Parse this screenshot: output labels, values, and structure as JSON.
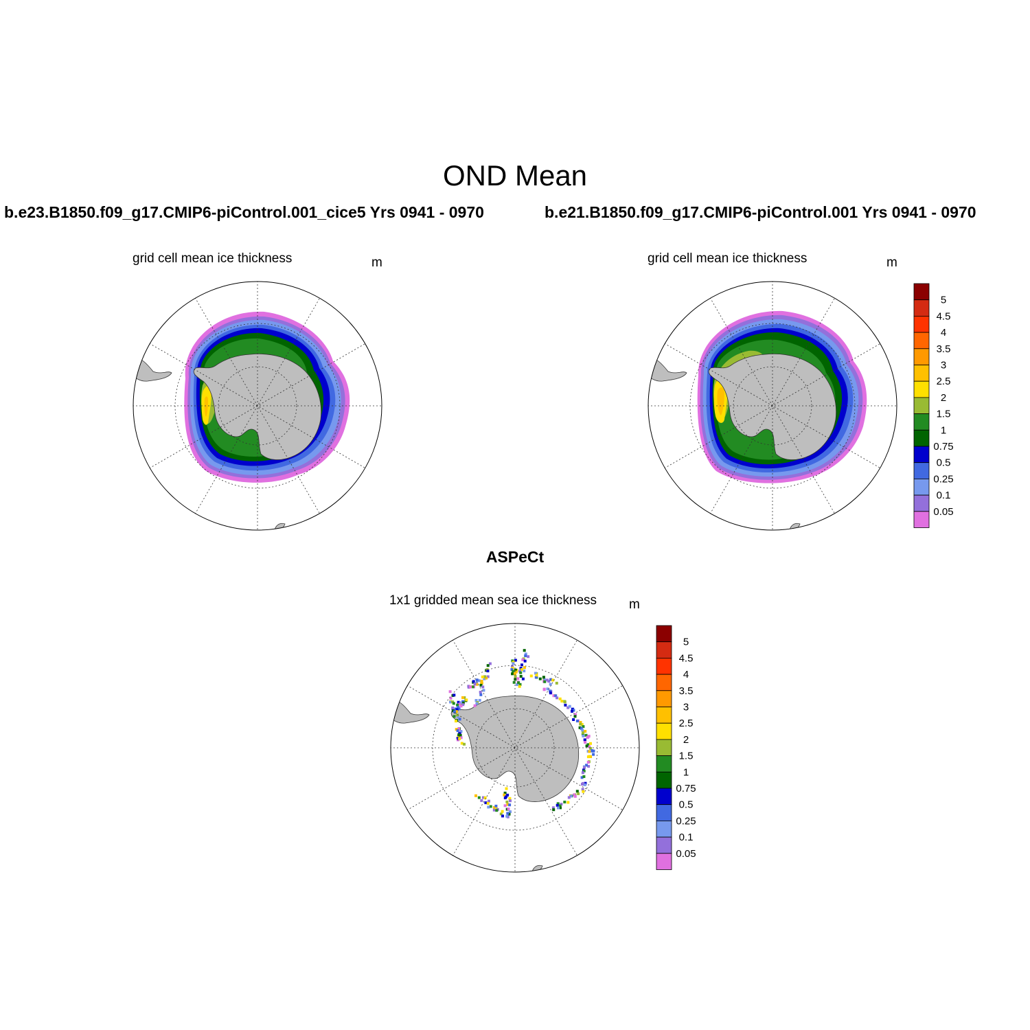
{
  "figure": {
    "title": "OND Mean",
    "obs_title": "ASPeCt"
  },
  "panels": {
    "left": {
      "case": "b.e23.B1850.f09_g17.CMIP6-piControl.001_cice5  Yrs 0941 - 0970",
      "subtitle": "grid cell mean ice thickness",
      "unit": "m"
    },
    "right": {
      "case": "b.e21.B1850.f09_g17.CMIP6-piControl.001  Yrs 0941 - 0970",
      "subtitle": "grid cell mean ice thickness",
      "unit": "m"
    },
    "obs": {
      "subtitle": "1x1 gridded mean sea ice thickness",
      "unit": "m"
    }
  },
  "colorbar": {
    "labels": [
      "5",
      "4.5",
      "4",
      "3.5",
      "3",
      "2.5",
      "2",
      "1.5",
      "1",
      "0.75",
      "0.5",
      "0.25",
      "0.1",
      "0.05"
    ],
    "colors_top_to_bottom": [
      "#8b0000",
      "#d42b12",
      "#ff3300",
      "#ff6600",
      "#ff9900",
      "#ffc000",
      "#ffe000",
      "#99bb33",
      "#228b22",
      "#006400",
      "#0000cd",
      "#4169e1",
      "#7799ee",
      "#9370db",
      "#e070e0"
    ]
  },
  "colors": {
    "land": "#bebebe",
    "ocean": "#ffffff",
    "thickness": {
      "t0_05": "#e070e0",
      "t0_1": "#9370db",
      "t0_25": "#7799ee",
      "t0_5": "#4169e1",
      "t0_75": "#0000cd",
      "t1": "#006400",
      "t1_5": "#228b22",
      "t2": "#99bb33",
      "t2_5": "#ffe000",
      "t3": "#ffc000"
    }
  }
}
